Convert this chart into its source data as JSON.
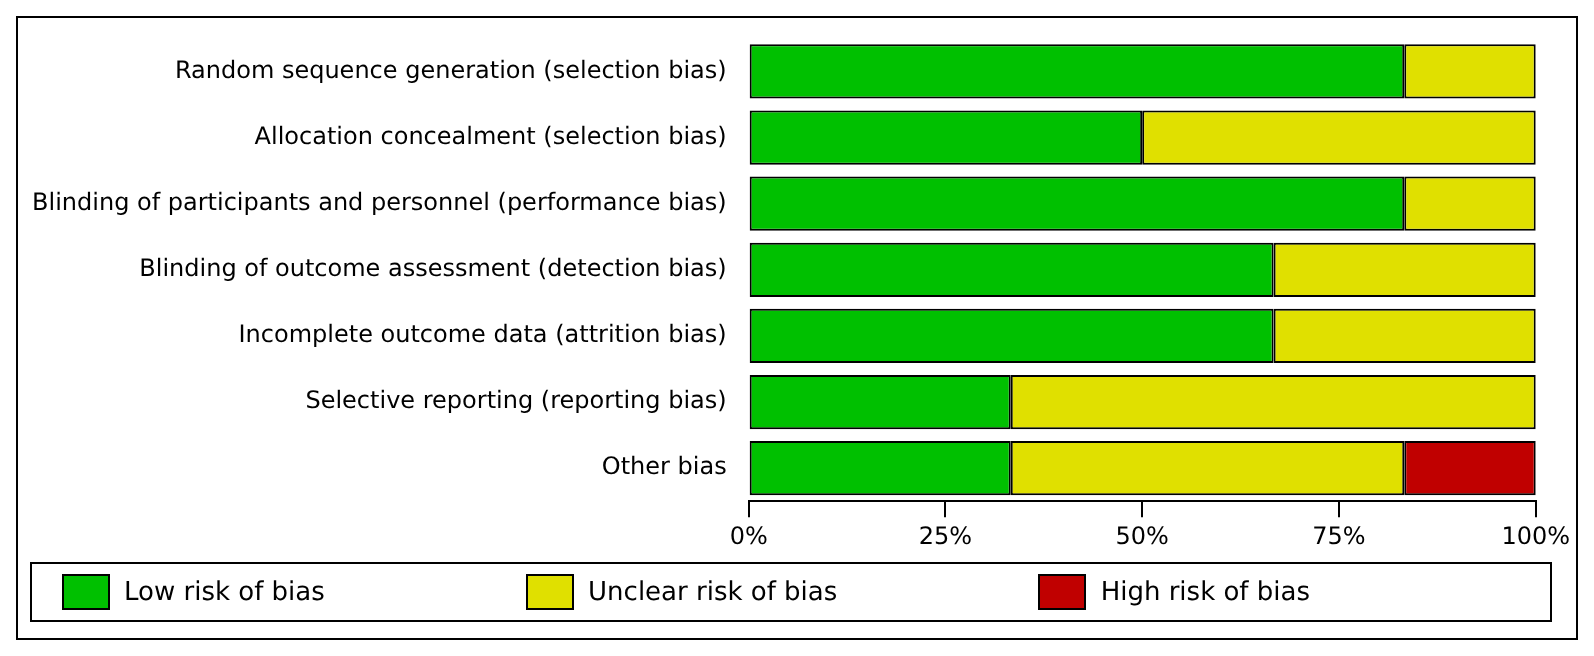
{
  "chart_data": {
    "type": "bar",
    "orientation": "horizontal",
    "stacked": true,
    "categories": [
      "Random sequence generation (selection bias)",
      "Allocation concealment (selection bias)",
      "Blinding of participants and personnel (performance bias)",
      "Blinding of outcome assessment (detection bias)",
      "Incomplete outcome data (attrition bias)",
      "Selective reporting (reporting bias)",
      "Other bias"
    ],
    "series": [
      {
        "name": "Low risk of bias",
        "color": "#00c000",
        "values": [
          83.3,
          50,
          83.3,
          66.7,
          66.7,
          33.3,
          33.3
        ]
      },
      {
        "name": "Unclear risk of bias",
        "color": "#e0e000",
        "values": [
          16.7,
          50,
          16.7,
          33.3,
          33.3,
          66.7,
          50
        ]
      },
      {
        "name": "High risk of bias",
        "color": "#c00000",
        "values": [
          0,
          0,
          0,
          0,
          0,
          0,
          16.7
        ]
      }
    ],
    "xlim": [
      0,
      100
    ],
    "xticks": [
      {
        "value": 0,
        "label": "0%"
      },
      {
        "value": 25,
        "label": "25%"
      },
      {
        "value": 50,
        "label": "50%"
      },
      {
        "value": 75,
        "label": "75%"
      },
      {
        "value": 100,
        "label": "100%"
      }
    ],
    "grid": false,
    "legend": "bottom"
  }
}
